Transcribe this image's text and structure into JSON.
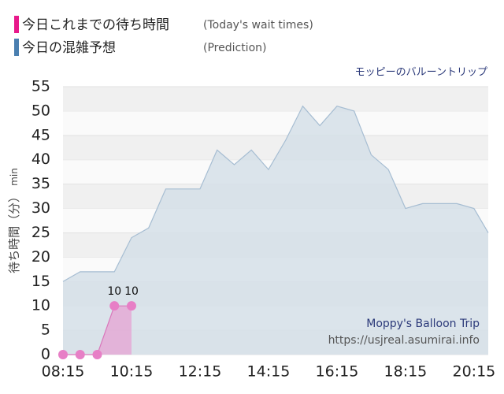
{
  "chart_data": {
    "type": "area",
    "subtitle": "モッピーのバルーントリップ",
    "y_label": "待ち時間（分）",
    "y_unit": "min",
    "watermark": [
      "Moppy's Balloon Trip",
      "https://usjreal.asumirai.info"
    ],
    "xlim": [
      495,
      1240
    ],
    "xticks": [
      {
        "value": 495,
        "label": "08:15"
      },
      {
        "value": 615,
        "label": "10:15"
      },
      {
        "value": 735,
        "label": "12:15"
      },
      {
        "value": 855,
        "label": "14:15"
      },
      {
        "value": 975,
        "label": "16:15"
      },
      {
        "value": 1095,
        "label": "18:15"
      },
      {
        "value": 1215,
        "label": "20:15"
      }
    ],
    "ylim": [
      0,
      55
    ],
    "yticks": [
      0,
      5,
      10,
      15,
      20,
      25,
      30,
      35,
      40,
      45,
      50,
      55
    ],
    "grid": true,
    "series": [
      {
        "name": "今日の混雑予想",
        "note": "(Prediction)",
        "color": "#4a7fb0",
        "x": [
          495,
          525,
          555,
          585,
          615,
          645,
          675,
          705,
          735,
          765,
          795,
          825,
          855,
          885,
          915,
          945,
          975,
          1005,
          1035,
          1065,
          1095,
          1125,
          1155,
          1185,
          1215,
          1240
        ],
        "values": [
          15,
          17,
          17,
          17,
          24,
          26,
          34,
          34,
          34,
          42,
          39,
          42,
          38,
          44,
          51,
          47,
          51,
          50,
          41,
          38,
          30,
          31,
          31,
          31,
          30,
          25
        ]
      },
      {
        "name": "今日これまでの待ち時間",
        "note": "(Today's wait times)",
        "color": "#e8198b",
        "x": [
          495,
          525,
          555,
          585,
          615
        ],
        "values": [
          0,
          0,
          0,
          10,
          10
        ]
      }
    ]
  }
}
